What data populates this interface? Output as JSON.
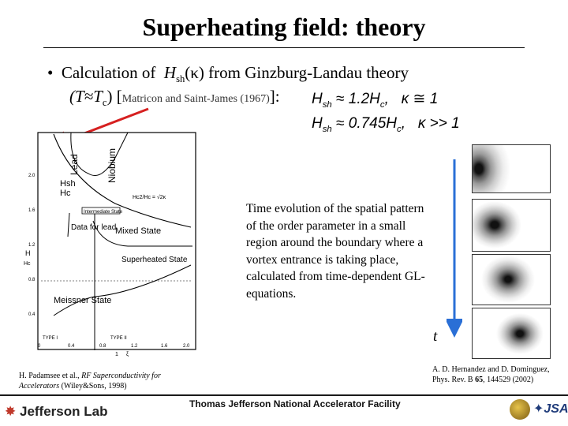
{
  "title": "Superheating field: theory",
  "bullet": {
    "marker": "•",
    "line1_prefix": "Calculation of",
    "h_symbol": "H",
    "h_sub": "sh",
    "kappa_paren": "(κ)",
    "line1_suffix": "from Ginzburg-Landau theory",
    "line2_open": "(T≈T",
    "line2_sub": "c",
    "line2_close": ") [",
    "citation": "Matricon and Saint-James (1967)",
    "line2_end": "]:"
  },
  "equations": [
    {
      "lhs": "H",
      "lhs_sub": "sh",
      "rel": "≈",
      "rhs": "1.2H",
      "rhs_sub": "c",
      "cond": "κ ≅ 1"
    },
    {
      "lhs": "H",
      "lhs_sub": "sh",
      "rel": "≈",
      "rhs": "0.745H",
      "rhs_sub": "c",
      "cond": "κ >> 1"
    }
  ],
  "phase_diagram": {
    "regions": [
      "Lead",
      "Niobium",
      "Mixed State",
      "Superheated State",
      "Meissner State"
    ],
    "annotation": "Data for lead",
    "ylabel_num": "H",
    "ylabel_den": "Hc",
    "xlabel_num": "1",
    "xlabel_den": "ξ",
    "arrow_label_num": "Hsh",
    "arrow_label_den": "Hc",
    "box_label": "Intermediate State",
    "formula_label": "Hc2/Hc = √2κ",
    "type_i": "TYPE I",
    "type_ii": "TYPE II",
    "x_ticks": [
      "0",
      "0.4",
      "0.8",
      "1.2",
      "1.6",
      "2.0"
    ],
    "y_ticks": [
      "2.0",
      "1.6",
      "1.2",
      "0.8",
      "0.4"
    ]
  },
  "description": "Time evolution of the spatial pattern of the order parameter in a small region around the boundary where a vortex entrance is taking place, calculated from time-dependent GL-equations.",
  "time_label": "t",
  "ref_left": {
    "authors": "H. Padamsee et al., ",
    "title": "RF Superconductivity for Accelerators",
    "pub": " (Wiley&Sons, 1998)"
  },
  "ref_right": {
    "text": "A. D. Hernandez and D. Dominguez, Phys. Rev. B ",
    "vol": "65",
    "rest": ", 144529 (2002)"
  },
  "footer": {
    "lab": "Jefferson Lab",
    "facility": "Thomas Jefferson National Accelerator Facility"
  },
  "colors": {
    "arrow_red": "#d62020",
    "arrow_blue": "#2a6fd6"
  }
}
